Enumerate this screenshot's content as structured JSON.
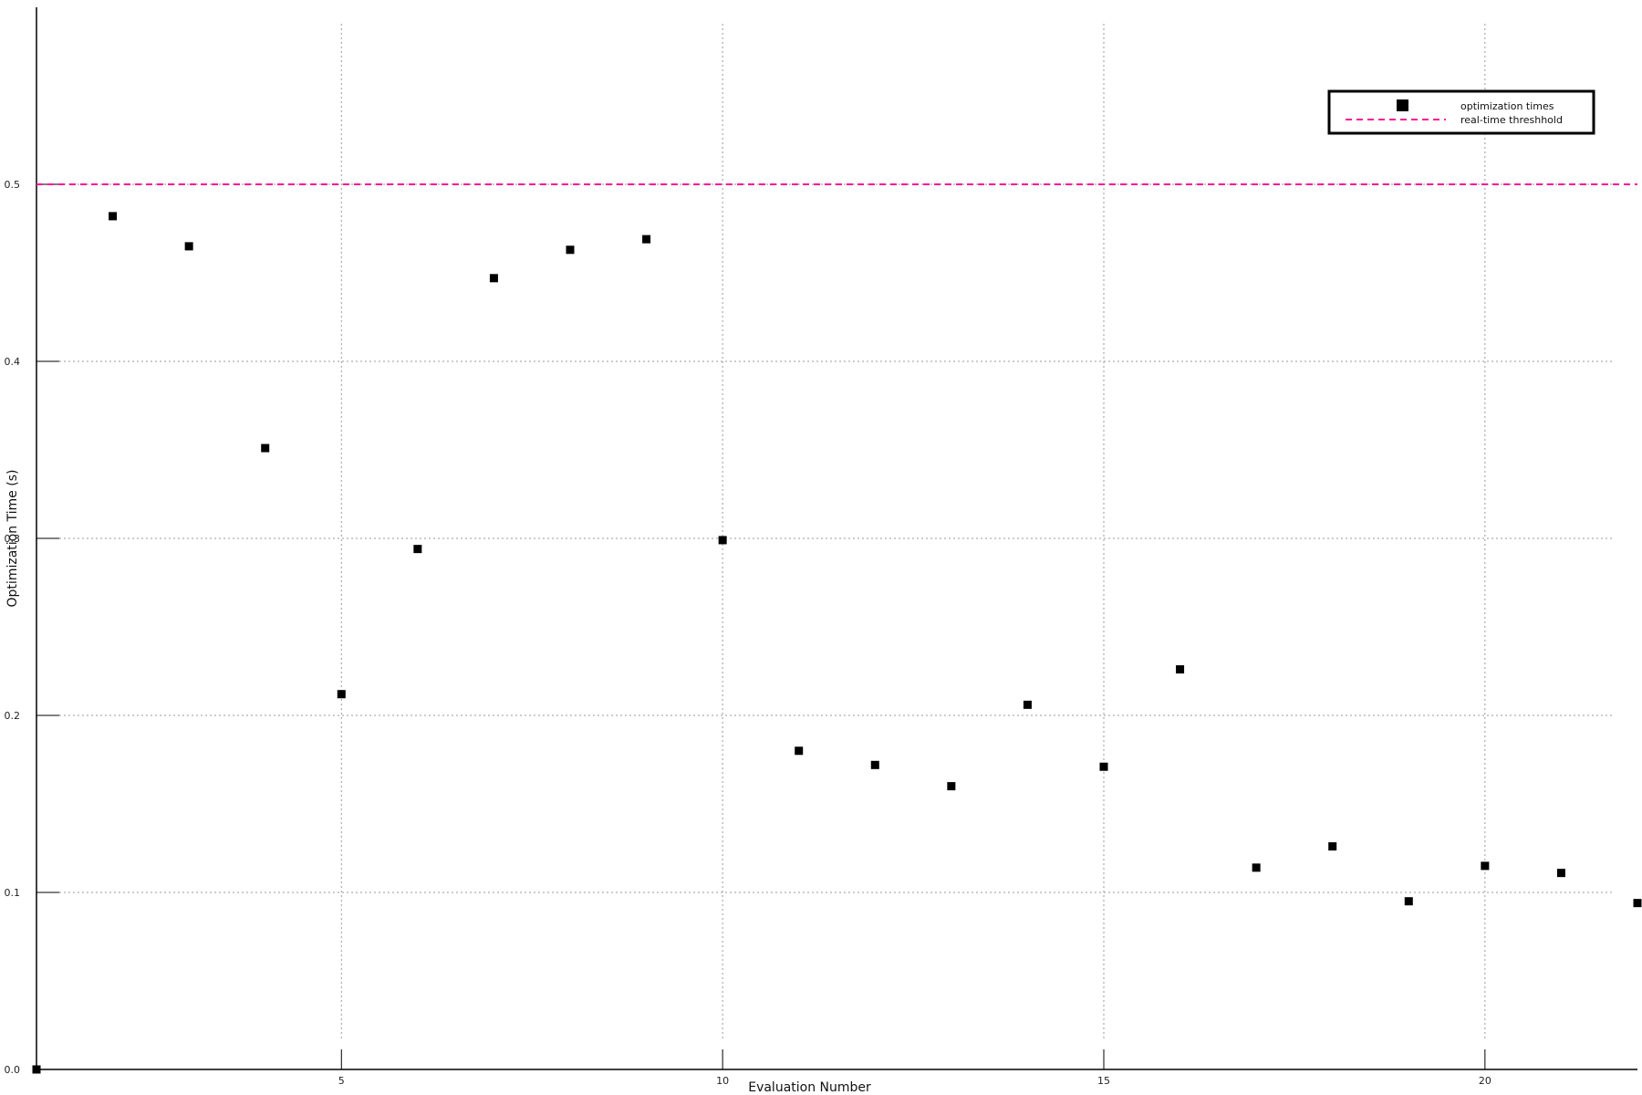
{
  "chart_data": {
    "type": "scatter",
    "title": "",
    "xlabel": "Evaluation Number",
    "ylabel": "Optimization Time (s)",
    "xlim": [
      1,
      22
    ],
    "ylim": [
      0,
      0.6
    ],
    "xticks": [
      5,
      10,
      15,
      20
    ],
    "yticks": [
      0.0,
      0.1,
      0.2,
      0.3,
      0.4,
      0.5
    ],
    "grid": true,
    "legend_position": "top-right",
    "series": [
      {
        "name": "optimization times",
        "marker": "square",
        "color": "#000000",
        "points": [
          {
            "x": 1,
            "y": 0.0
          },
          {
            "x": 2,
            "y": 0.482
          },
          {
            "x": 3,
            "y": 0.465
          },
          {
            "x": 4,
            "y": 0.351
          },
          {
            "x": 5,
            "y": 0.212
          },
          {
            "x": 6,
            "y": 0.294
          },
          {
            "x": 7,
            "y": 0.447
          },
          {
            "x": 8,
            "y": 0.463
          },
          {
            "x": 9,
            "y": 0.469
          },
          {
            "x": 10,
            "y": 0.299
          },
          {
            "x": 11,
            "y": 0.18
          },
          {
            "x": 12,
            "y": 0.172
          },
          {
            "x": 13,
            "y": 0.16
          },
          {
            "x": 14,
            "y": 0.206
          },
          {
            "x": 15,
            "y": 0.171
          },
          {
            "x": 16,
            "y": 0.226
          },
          {
            "x": 17,
            "y": 0.114
          },
          {
            "x": 18,
            "y": 0.126
          },
          {
            "x": 19,
            "y": 0.095
          },
          {
            "x": 20,
            "y": 0.115
          },
          {
            "x": 21,
            "y": 0.111
          },
          {
            "x": 22,
            "y": 0.094
          }
        ]
      },
      {
        "name": "real-time threshhold",
        "type": "hline",
        "style": "dashed",
        "color": "#ff1493",
        "y": 0.5
      }
    ]
  }
}
